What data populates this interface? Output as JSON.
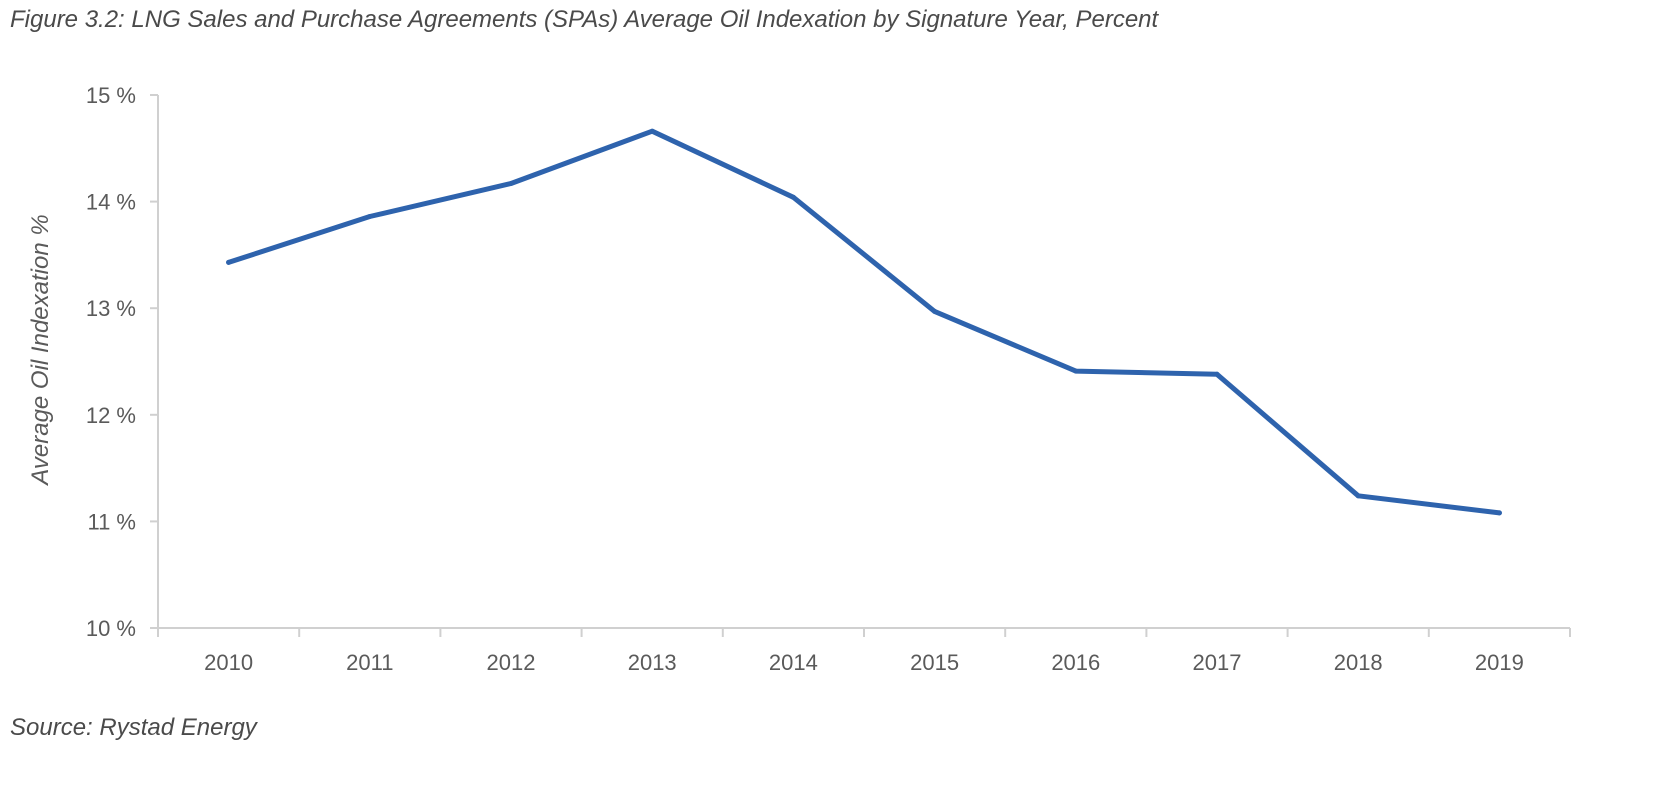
{
  "figure": {
    "title": "Figure 3.2: LNG Sales and Purchase Agreements (SPAs) Average Oil Indexation by Signature Year, Percent",
    "source": "Source: Rystad Energy"
  },
  "chart_data": {
    "type": "line",
    "title": "Figure 3.2: LNG Sales and Purchase Agreements (SPAs) Average Oil Indexation by Signature Year, Percent",
    "xlabel": "",
    "ylabel": "Average Oil Indexation %",
    "categories": [
      "2010",
      "2011",
      "2012",
      "2013",
      "2014",
      "2015",
      "2016",
      "2017",
      "2018",
      "2019"
    ],
    "series": [
      {
        "values": [
          13.43,
          13.86,
          14.17,
          14.66,
          14.04,
          12.97,
          12.41,
          12.38,
          11.24,
          11.08
        ],
        "color": "#2e63ad"
      }
    ],
    "ylim": [
      10,
      15
    ],
    "yticks": [
      10,
      11,
      12,
      13,
      14,
      15
    ],
    "ytick_labels": [
      "10 %",
      "11 %",
      "12 %",
      "13 %",
      "14 %",
      "15 %"
    ],
    "grid": false,
    "legend": "none",
    "axis_color": "#d0d0d0"
  }
}
